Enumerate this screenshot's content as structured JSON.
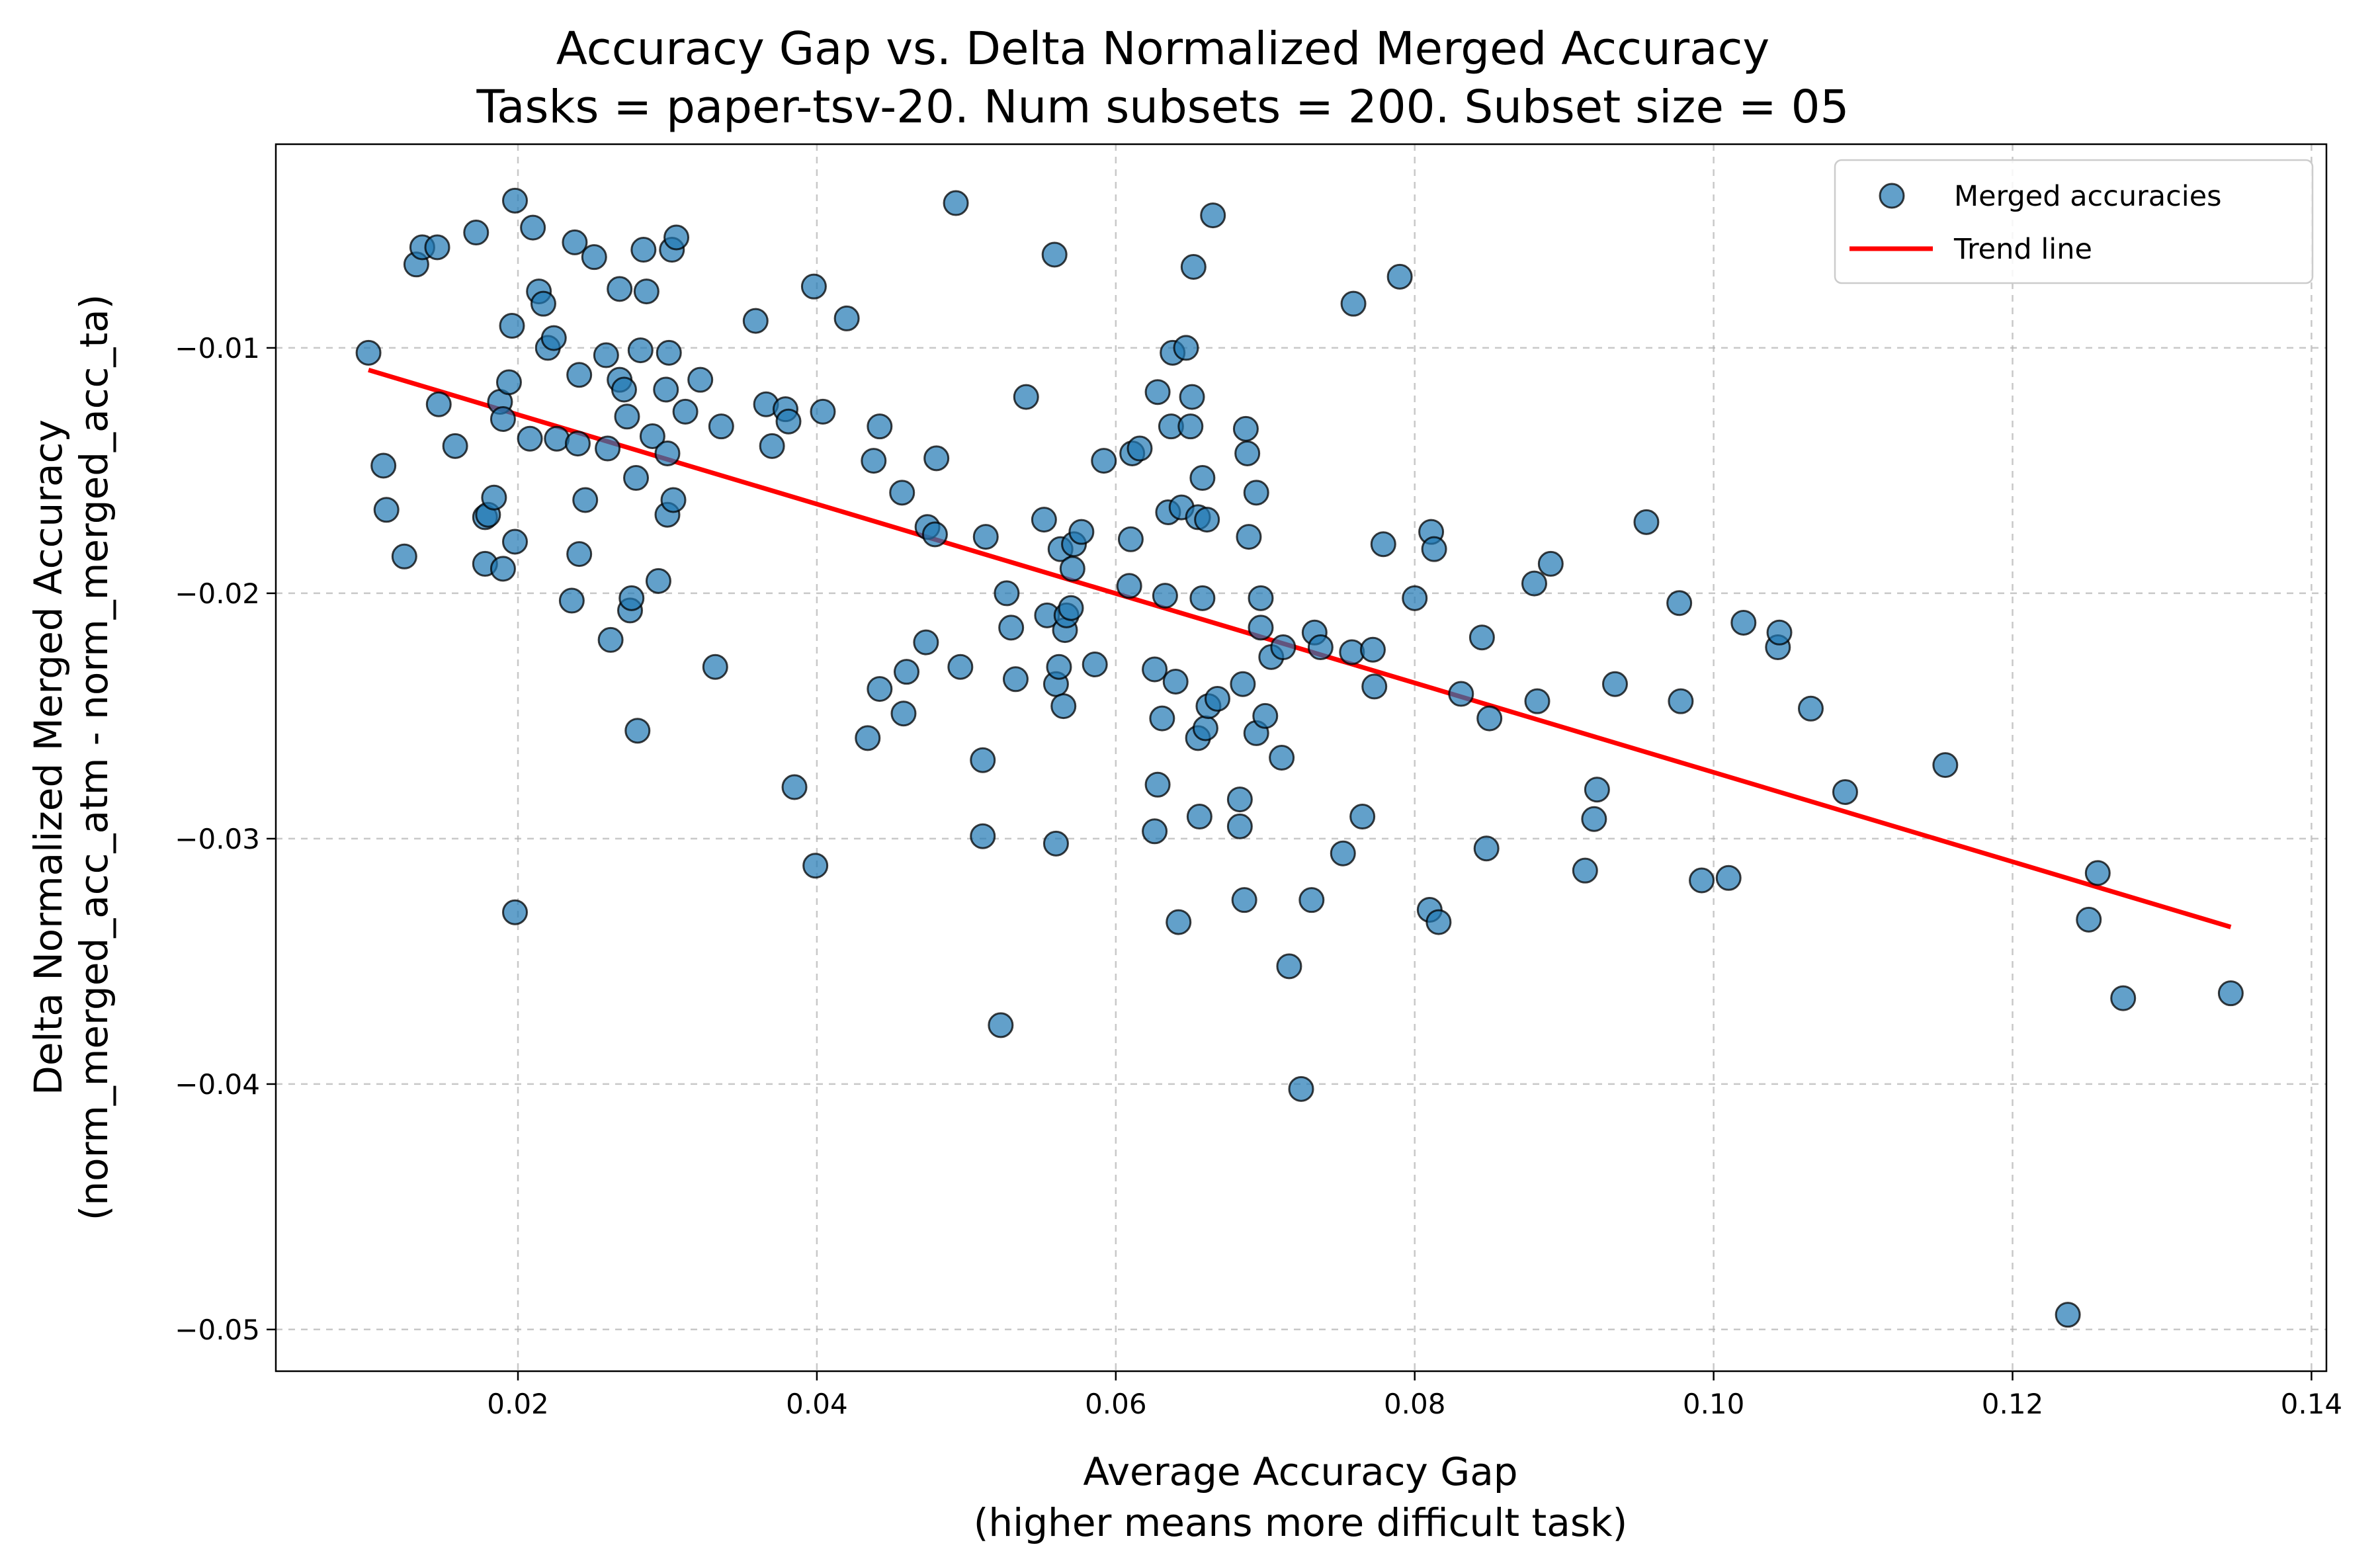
{
  "chart_data": {
    "type": "scatter",
    "title": "Accuracy Gap vs. Delta Normalized Merged Accuracy",
    "subtitle": "Tasks = paper-tsv-20. Num subsets = 200. Subset size = 05",
    "xlabel": "Average Accuracy Gap",
    "xlabel_sub": "(higher means more difficult task)",
    "ylabel": "Delta Normalized Merged Accuracy",
    "ylabel_sub": "(norm_merged_acc_atm - norm_merged_acc_ta)",
    "xlim": [
      0.0038,
      0.141
    ],
    "ylim": [
      -0.0517,
      -0.0017
    ],
    "xticks": [
      "0.02",
      "0.04",
      "0.06",
      "0.08",
      "0.10",
      "0.12",
      "0.14"
    ],
    "yticks": [
      "−0.01",
      "−0.02",
      "−0.03",
      "−0.04",
      "−0.05"
    ],
    "grid": true,
    "legend_position": "top-right",
    "colors": {
      "points": "#1f77b4",
      "trend": "#ff0000"
    },
    "series": [
      {
        "name": "Merged accuracies",
        "type": "scatter",
        "points": [
          [
            0.01,
            -0.0102
          ],
          [
            0.011,
            -0.0148
          ],
          [
            0.0112,
            -0.0166
          ],
          [
            0.0124,
            -0.0185
          ],
          [
            0.0132,
            -0.0066
          ],
          [
            0.0136,
            -0.0059
          ],
          [
            0.0146,
            -0.0059
          ],
          [
            0.0147,
            -0.0123
          ],
          [
            0.0158,
            -0.014
          ],
          [
            0.0172,
            -0.0053
          ],
          [
            0.0178,
            -0.0188
          ],
          [
            0.0178,
            -0.0169
          ],
          [
            0.018,
            -0.0168
          ],
          [
            0.0184,
            -0.0161
          ],
          [
            0.0188,
            -0.0122
          ],
          [
            0.019,
            -0.0129
          ],
          [
            0.019,
            -0.019
          ],
          [
            0.0194,
            -0.0114
          ],
          [
            0.0196,
            -0.0091
          ],
          [
            0.0198,
            -0.0179
          ],
          [
            0.0198,
            -0.033
          ],
          [
            0.0198,
            -0.004
          ],
          [
            0.0208,
            -0.0137
          ],
          [
            0.021,
            -0.0051
          ],
          [
            0.0214,
            -0.0077
          ],
          [
            0.0217,
            -0.0082
          ],
          [
            0.022,
            -0.01
          ],
          [
            0.0224,
            -0.0096
          ],
          [
            0.0226,
            -0.0137
          ],
          [
            0.0236,
            -0.0203
          ],
          [
            0.0238,
            -0.0057
          ],
          [
            0.024,
            -0.0139
          ],
          [
            0.0241,
            -0.0111
          ],
          [
            0.0241,
            -0.0184
          ],
          [
            0.0245,
            -0.0162
          ],
          [
            0.0251,
            -0.0063
          ],
          [
            0.0259,
            -0.0103
          ],
          [
            0.026,
            -0.0141
          ],
          [
            0.0262,
            -0.0219
          ],
          [
            0.0268,
            -0.0113
          ],
          [
            0.0268,
            -0.0076
          ],
          [
            0.0271,
            -0.0117
          ],
          [
            0.0273,
            -0.0128
          ],
          [
            0.0275,
            -0.0207
          ],
          [
            0.0276,
            -0.0202
          ],
          [
            0.0279,
            -0.0153
          ],
          [
            0.028,
            -0.0256
          ],
          [
            0.0282,
            -0.0101
          ],
          [
            0.0284,
            -0.006
          ],
          [
            0.0286,
            -0.0077
          ],
          [
            0.029,
            -0.0136
          ],
          [
            0.0294,
            -0.0195
          ],
          [
            0.0299,
            -0.0117
          ],
          [
            0.03,
            -0.0168
          ],
          [
            0.03,
            -0.0143
          ],
          [
            0.0301,
            -0.0102
          ],
          [
            0.0303,
            -0.006
          ],
          [
            0.0304,
            -0.0162
          ],
          [
            0.0306,
            -0.0055
          ],
          [
            0.0312,
            -0.0126
          ],
          [
            0.0322,
            -0.0113
          ],
          [
            0.0332,
            -0.023
          ],
          [
            0.0336,
            -0.0132
          ],
          [
            0.0359,
            -0.0089
          ],
          [
            0.0366,
            -0.0123
          ],
          [
            0.037,
            -0.014
          ],
          [
            0.0379,
            -0.0125
          ],
          [
            0.0381,
            -0.013
          ],
          [
            0.0385,
            -0.0279
          ],
          [
            0.0398,
            -0.0075
          ],
          [
            0.0399,
            -0.0311
          ],
          [
            0.0404,
            -0.0126
          ],
          [
            0.042,
            -0.0088
          ],
          [
            0.0434,
            -0.0259
          ],
          [
            0.0438,
            -0.0146
          ],
          [
            0.0442,
            -0.0132
          ],
          [
            0.0442,
            -0.0239
          ],
          [
            0.0457,
            -0.0159
          ],
          [
            0.0458,
            -0.0249
          ],
          [
            0.046,
            -0.0232
          ],
          [
            0.0473,
            -0.022
          ],
          [
            0.0474,
            -0.0173
          ],
          [
            0.0479,
            -0.0176
          ],
          [
            0.048,
            -0.0145
          ],
          [
            0.0493,
            -0.0041
          ],
          [
            0.0496,
            -0.023
          ],
          [
            0.0511,
            -0.0268
          ],
          [
            0.0511,
            -0.0299
          ],
          [
            0.0513,
            -0.0177
          ],
          [
            0.0523,
            -0.0376
          ],
          [
            0.0527,
            -0.02
          ],
          [
            0.053,
            -0.0214
          ],
          [
            0.0533,
            -0.0235
          ],
          [
            0.054,
            -0.012
          ],
          [
            0.0552,
            -0.017
          ],
          [
            0.0554,
            -0.0209
          ],
          [
            0.0559,
            -0.0062
          ],
          [
            0.056,
            -0.0237
          ],
          [
            0.056,
            -0.0302
          ],
          [
            0.0562,
            -0.023
          ],
          [
            0.0563,
            -0.0182
          ],
          [
            0.0565,
            -0.0246
          ],
          [
            0.0566,
            -0.0215
          ],
          [
            0.0567,
            -0.0209
          ],
          [
            0.057,
            -0.0206
          ],
          [
            0.0571,
            -0.019
          ],
          [
            0.0572,
            -0.018
          ],
          [
            0.0577,
            -0.0175
          ],
          [
            0.0586,
            -0.0229
          ],
          [
            0.0592,
            -0.0146
          ],
          [
            0.0609,
            -0.0197
          ],
          [
            0.061,
            -0.0178
          ],
          [
            0.0611,
            -0.0143
          ],
          [
            0.0616,
            -0.0141
          ],
          [
            0.0626,
            -0.0231
          ],
          [
            0.0626,
            -0.0297
          ],
          [
            0.0628,
            -0.0278
          ],
          [
            0.0628,
            -0.0118
          ],
          [
            0.0631,
            -0.0251
          ],
          [
            0.0633,
            -0.0201
          ],
          [
            0.0635,
            -0.0167
          ],
          [
            0.0637,
            -0.0132
          ],
          [
            0.0638,
            -0.0102
          ],
          [
            0.064,
            -0.0236
          ],
          [
            0.0642,
            -0.0334
          ],
          [
            0.0644,
            -0.0165
          ],
          [
            0.0647,
            -0.01
          ],
          [
            0.065,
            -0.0132
          ],
          [
            0.0651,
            -0.012
          ],
          [
            0.0652,
            -0.0067
          ],
          [
            0.0655,
            -0.0259
          ],
          [
            0.0655,
            -0.0169
          ],
          [
            0.0656,
            -0.0291
          ],
          [
            0.0658,
            -0.0202
          ],
          [
            0.0658,
            -0.0153
          ],
          [
            0.066,
            -0.0255
          ],
          [
            0.0661,
            -0.017
          ],
          [
            0.0662,
            -0.0246
          ],
          [
            0.0665,
            -0.0046
          ],
          [
            0.0668,
            -0.0243
          ],
          [
            0.0683,
            -0.0284
          ],
          [
            0.0683,
            -0.0295
          ],
          [
            0.0685,
            -0.0237
          ],
          [
            0.0686,
            -0.0325
          ],
          [
            0.0687,
            -0.0133
          ],
          [
            0.0688,
            -0.0143
          ],
          [
            0.0689,
            -0.0177
          ],
          [
            0.0694,
            -0.0159
          ],
          [
            0.0694,
            -0.0257
          ],
          [
            0.0697,
            -0.0214
          ],
          [
            0.0697,
            -0.0202
          ],
          [
            0.07,
            -0.025
          ],
          [
            0.0704,
            -0.0226
          ],
          [
            0.0711,
            -0.0267
          ],
          [
            0.0712,
            -0.0222
          ],
          [
            0.0716,
            -0.0352
          ],
          [
            0.0724,
            -0.0402
          ],
          [
            0.0731,
            -0.0325
          ],
          [
            0.0733,
            -0.0216
          ],
          [
            0.0737,
            -0.0222
          ],
          [
            0.0752,
            -0.0306
          ],
          [
            0.0758,
            -0.0224
          ],
          [
            0.0759,
            -0.0082
          ],
          [
            0.0765,
            -0.0291
          ],
          [
            0.0772,
            -0.0223
          ],
          [
            0.0773,
            -0.0238
          ],
          [
            0.0779,
            -0.018
          ],
          [
            0.079,
            -0.0071
          ],
          [
            0.08,
            -0.0202
          ],
          [
            0.081,
            -0.0329
          ],
          [
            0.0811,
            -0.0175
          ],
          [
            0.0813,
            -0.0182
          ],
          [
            0.0816,
            -0.0334
          ],
          [
            0.0831,
            -0.0241
          ],
          [
            0.0845,
            -0.0218
          ],
          [
            0.0848,
            -0.0304
          ],
          [
            0.085,
            -0.0251
          ],
          [
            0.088,
            -0.0196
          ],
          [
            0.0882,
            -0.0244
          ],
          [
            0.0891,
            -0.0188
          ],
          [
            0.0914,
            -0.0313
          ],
          [
            0.092,
            -0.0292
          ],
          [
            0.0922,
            -0.028
          ],
          [
            0.0934,
            -0.0237
          ],
          [
            0.0955,
            -0.0171
          ],
          [
            0.0977,
            -0.0204
          ],
          [
            0.0978,
            -0.0244
          ],
          [
            0.0992,
            -0.0317
          ],
          [
            0.101,
            -0.0316
          ],
          [
            0.102,
            -0.0212
          ],
          [
            0.1043,
            -0.0222
          ],
          [
            0.1044,
            -0.0216
          ],
          [
            0.1065,
            -0.0247
          ],
          [
            0.1088,
            -0.0281
          ],
          [
            0.1155,
            -0.027
          ],
          [
            0.1237,
            -0.0494
          ],
          [
            0.1251,
            -0.0333
          ],
          [
            0.1257,
            -0.0314
          ],
          [
            0.1274,
            -0.0365
          ],
          [
            0.1346,
            -0.0363
          ]
        ]
      },
      {
        "name": "Trend line",
        "type": "line",
        "points": [
          [
            0.01,
            -0.0109
          ],
          [
            0.1346,
            -0.0336
          ]
        ]
      }
    ]
  }
}
